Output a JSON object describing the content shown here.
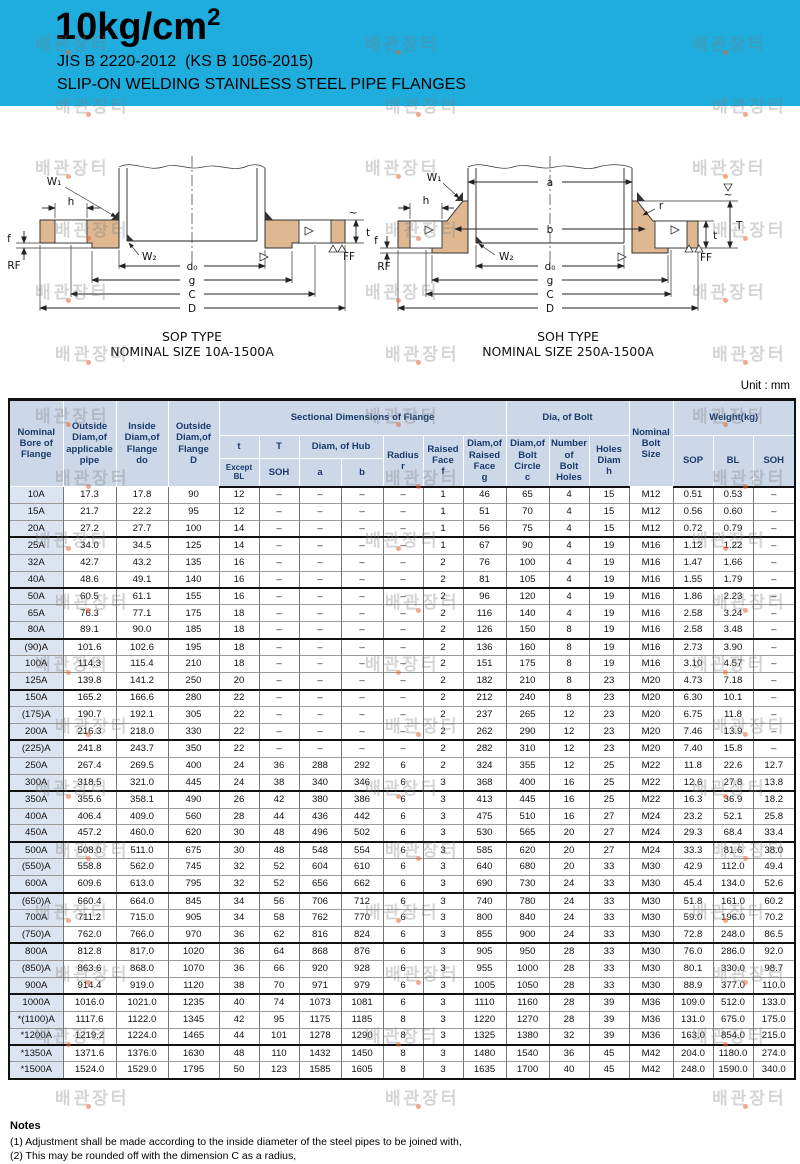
{
  "header": {
    "title": "10kg/cm",
    "title_sup": "2",
    "standard": "JIS B 2220-2012  (KS B 1056-2015)",
    "subtitle": "SLIP-ON WELDING STAINLESS STEEL PIPE FLANGES"
  },
  "watermark": {
    "text": "배관장터"
  },
  "diagrams": {
    "sop": {
      "caption_line1": "SOP TYPE",
      "caption_line2": "NOMINAL SIZE 10A-1500A",
      "labels": {
        "w1": "W₁",
        "w2": "W₂",
        "h": "h",
        "f": "f",
        "rf": "RF",
        "d0": "d₀",
        "g": "g",
        "c": "C",
        "d": "D",
        "t": "t",
        "ff": "FF",
        "tilde": "~"
      }
    },
    "soh": {
      "caption_line1": "SOH TYPE",
      "caption_line2": "NOMINAL SIZE 250A-1500A",
      "labels": {
        "w1": "W₁",
        "w2": "W₂",
        "h": "h",
        "f": "f",
        "rf": "RF",
        "d0": "d₀",
        "g": "g",
        "c": "C",
        "d": "D",
        "t": "t",
        "T": "T",
        "a": "a",
        "b": "b",
        "r": "r",
        "ff": "FF",
        "tilde": "~"
      }
    }
  },
  "table": {
    "unit_label": "Unit : mm",
    "headers": {
      "nominal_bore": "Nominal\nBore of\nFlange",
      "outside_pipe": "Outside\nDiam,of\napplicable\npipe",
      "inside_flange": "Inside\nDiam,of\nFlange\ndo",
      "outside_flange": "Outside\nDiam,of\nFlange\nD",
      "sectional": "Sectional Dimensions of Flange",
      "t": "t",
      "t_sub": "Except BL",
      "T_label": "T",
      "T_sub": "SOH",
      "hub": "Diam, of Hub",
      "hub_a": "a",
      "hub_b": "b",
      "radius": "Radius\nr",
      "raised_face": "Raised\nFace\nf",
      "raised_face_diam": "Diam,of\nRaised\nFace\ng",
      "bolt_group": "Dia, of Bolt",
      "bolt_circle": "Diam,of\nBolt\nCircle\nc",
      "bolt_holes": "Number\nof\nBolt\nHoles",
      "holes_diam": "Holes\nDiam\nh",
      "bolt_size": "Nominal\nBolt\nSize",
      "weight": "Weight(kg)",
      "weight_sop": "SOP",
      "weight_bl": "BL",
      "weight_soh": "SOH"
    },
    "rows": [
      [
        "10A",
        "17.3",
        "17.8",
        "90",
        "12",
        "–",
        "–",
        "–",
        "–",
        "1",
        "46",
        "65",
        "4",
        "15",
        "M12",
        "0.51",
        "0.53",
        "–"
      ],
      [
        "15A",
        "21.7",
        "22.2",
        "95",
        "12",
        "–",
        "–",
        "–",
        "–",
        "1",
        "51",
        "70",
        "4",
        "15",
        "M12",
        "0.56",
        "0.60",
        "–"
      ],
      [
        "20A",
        "27.2",
        "27.7",
        "100",
        "14",
        "–",
        "–",
        "–",
        "–",
        "1",
        "56",
        "75",
        "4",
        "15",
        "M12",
        "0.72",
        "0.79",
        "–"
      ],
      [
        "25A",
        "34.0",
        "34.5",
        "125",
        "14",
        "–",
        "–",
        "–",
        "–",
        "1",
        "67",
        "90",
        "4",
        "19",
        "M16",
        "1.12",
        "1.22",
        "–"
      ],
      [
        "32A",
        "42.7",
        "43.2",
        "135",
        "16",
        "–",
        "–",
        "–",
        "–",
        "2",
        "76",
        "100",
        "4",
        "19",
        "M16",
        "1.47",
        "1.66",
        "–"
      ],
      [
        "40A",
        "48.6",
        "49.1",
        "140",
        "16",
        "–",
        "–",
        "–",
        "–",
        "2",
        "81",
        "105",
        "4",
        "19",
        "M16",
        "1.55",
        "1.79",
        "–"
      ],
      [
        "50A",
        "60.5",
        "61.1",
        "155",
        "16",
        "–",
        "–",
        "–",
        "–",
        "2",
        "96",
        "120",
        "4",
        "19",
        "M16",
        "1.86",
        "2.23",
        "–"
      ],
      [
        "65A",
        "76.3",
        "77.1",
        "175",
        "18",
        "–",
        "–",
        "–",
        "–",
        "2",
        "116",
        "140",
        "4",
        "19",
        "M16",
        "2.58",
        "3.24",
        "–"
      ],
      [
        "80A",
        "89.1",
        "90.0",
        "185",
        "18",
        "–",
        "–",
        "–",
        "–",
        "2",
        "126",
        "150",
        "8",
        "19",
        "M16",
        "2.58",
        "3.48",
        "–"
      ],
      [
        "(90)A",
        "101.6",
        "102.6",
        "195",
        "18",
        "–",
        "–",
        "–",
        "–",
        "2",
        "136",
        "160",
        "8",
        "19",
        "M16",
        "2.73",
        "3.90",
        "–"
      ],
      [
        "100A",
        "114.3",
        "115.4",
        "210",
        "18",
        "–",
        "–",
        "–",
        "–",
        "2",
        "151",
        "175",
        "8",
        "19",
        "M16",
        "3.10",
        "4.57",
        "–"
      ],
      [
        "125A",
        "139.8",
        "141.2",
        "250",
        "20",
        "–",
        "–",
        "–",
        "–",
        "2",
        "182",
        "210",
        "8",
        "23",
        "M20",
        "4.73",
        "7.18",
        "–"
      ],
      [
        "150A",
        "165.2",
        "166.6",
        "280",
        "22",
        "–",
        "–",
        "–",
        "–",
        "2",
        "212",
        "240",
        "8",
        "23",
        "M20",
        "6.30",
        "10.1",
        "–"
      ],
      [
        "(175)A",
        "190.7",
        "192.1",
        "305",
        "22",
        "–",
        "–",
        "–",
        "–",
        "2",
        "237",
        "265",
        "12",
        "23",
        "M20",
        "6.75",
        "11.8",
        "–"
      ],
      [
        "200A",
        "216.3",
        "218.0",
        "330",
        "22",
        "–",
        "–",
        "–",
        "–",
        "2",
        "262",
        "290",
        "12",
        "23",
        "M20",
        "7.46",
        "13.9",
        "–"
      ],
      [
        "(225)A",
        "241.8",
        "243.7",
        "350",
        "22",
        "–",
        "–",
        "–",
        "–",
        "2",
        "282",
        "310",
        "12",
        "23",
        "M20",
        "7.40",
        "15.8",
        "–"
      ],
      [
        "250A",
        "267.4",
        "269.5",
        "400",
        "24",
        "36",
        "288",
        "292",
        "6",
        "2",
        "324",
        "355",
        "12",
        "25",
        "M22",
        "11.8",
        "22.6",
        "12.7"
      ],
      [
        "300A",
        "318.5",
        "321.0",
        "445",
        "24",
        "38",
        "340",
        "346",
        "6",
        "3",
        "368",
        "400",
        "16",
        "25",
        "M22",
        "12.6",
        "27.8",
        "13.8"
      ],
      [
        "350A",
        "355.6",
        "358.1",
        "490",
        "26",
        "42",
        "380",
        "386",
        "6",
        "3",
        "413",
        "445",
        "16",
        "25",
        "M22",
        "16.3",
        "36.9",
        "18.2"
      ],
      [
        "400A",
        "406.4",
        "409.0",
        "560",
        "28",
        "44",
        "436",
        "442",
        "6",
        "3",
        "475",
        "510",
        "16",
        "27",
        "M24",
        "23.2",
        "52.1",
        "25.8"
      ],
      [
        "450A",
        "457.2",
        "460.0",
        "620",
        "30",
        "48",
        "496",
        "502",
        "6",
        "3",
        "530",
        "565",
        "20",
        "27",
        "M24",
        "29.3",
        "68.4",
        "33.4"
      ],
      [
        "500A",
        "508.0",
        "511.0",
        "675",
        "30",
        "48",
        "548",
        "554",
        "6",
        "3",
        "585",
        "620",
        "20",
        "27",
        "M24",
        "33.3",
        "81.6",
        "38.0"
      ],
      [
        "(550)A",
        "558.8",
        "562.0",
        "745",
        "32",
        "52",
        "604",
        "610",
        "6",
        "3",
        "640",
        "680",
        "20",
        "33",
        "M30",
        "42.9",
        "112.0",
        "49.4"
      ],
      [
        "600A",
        "609.6",
        "613.0",
        "795",
        "32",
        "52",
        "656",
        "662",
        "6",
        "3",
        "690",
        "730",
        "24",
        "33",
        "M30",
        "45.4",
        "134.0",
        "52.6"
      ],
      [
        "(650)A",
        "660.4",
        "664.0",
        "845",
        "34",
        "56",
        "706",
        "712",
        "6",
        "3",
        "740",
        "780",
        "24",
        "33",
        "M30",
        "51.8",
        "161.0",
        "60.2"
      ],
      [
        "700A",
        "711.2",
        "715.0",
        "905",
        "34",
        "58",
        "762",
        "770",
        "6",
        "3",
        "800",
        "840",
        "24",
        "33",
        "M30",
        "59.0",
        "196.0",
        "70.2"
      ],
      [
        "(750)A",
        "762.0",
        "766.0",
        "970",
        "36",
        "62",
        "816",
        "824",
        "6",
        "3",
        "855",
        "900",
        "24",
        "33",
        "M30",
        "72.8",
        "248.0",
        "86.5"
      ],
      [
        "800A",
        "812.8",
        "817.0",
        "1020",
        "36",
        "64",
        "868",
        "876",
        "6",
        "3",
        "905",
        "950",
        "28",
        "33",
        "M30",
        "76.0",
        "286.0",
        "92.0"
      ],
      [
        "(850)A",
        "863.6",
        "868.0",
        "1070",
        "36",
        "66",
        "920",
        "928",
        "6",
        "3",
        "955",
        "1000",
        "28",
        "33",
        "M30",
        "80.1",
        "330.0",
        "98.7"
      ],
      [
        "900A",
        "914.4",
        "919.0",
        "1120",
        "38",
        "70",
        "971",
        "979",
        "6",
        "3",
        "1005",
        "1050",
        "28",
        "33",
        "M30",
        "88.9",
        "377.0",
        "110.0"
      ],
      [
        "1000A",
        "1016.0",
        "1021.0",
        "1235",
        "40",
        "74",
        "1073",
        "1081",
        "6",
        "3",
        "1110",
        "1160",
        "28",
        "39",
        "M36",
        "109.0",
        "512.0",
        "133.0"
      ],
      [
        "*(1100)A",
        "1117.6",
        "1122.0",
        "1345",
        "42",
        "95",
        "1175",
        "1185",
        "8",
        "3",
        "1220",
        "1270",
        "28",
        "39",
        "M36",
        "131.0",
        "675.0",
        "175.0"
      ],
      [
        "*1200A",
        "1219.2",
        "1224.0",
        "1465",
        "44",
        "101",
        "1278",
        "1290",
        "8",
        "3",
        "1325",
        "1380",
        "32",
        "39",
        "M36",
        "163.0",
        "854.0",
        "215.0"
      ],
      [
        "*1350A",
        "1371.6",
        "1376.0",
        "1630",
        "48",
        "110",
        "1432",
        "1450",
        "8",
        "3",
        "1480",
        "1540",
        "36",
        "45",
        "M42",
        "204.0",
        "1180.0",
        "274.0"
      ],
      [
        "*1500A",
        "1524.0",
        "1529.0",
        "1795",
        "50",
        "123",
        "1585",
        "1605",
        "8",
        "3",
        "1635",
        "1700",
        "40",
        "45",
        "M42",
        "248.0",
        "1590.0",
        "340.0"
      ]
    ]
  },
  "notes": {
    "title": "Notes",
    "items": [
      "(1) Adjustment shall be made according to the inside diameter of the steel pipes to be joined with,",
      "(2) This may be rounded off with the dimension C as a radius,"
    ]
  }
}
